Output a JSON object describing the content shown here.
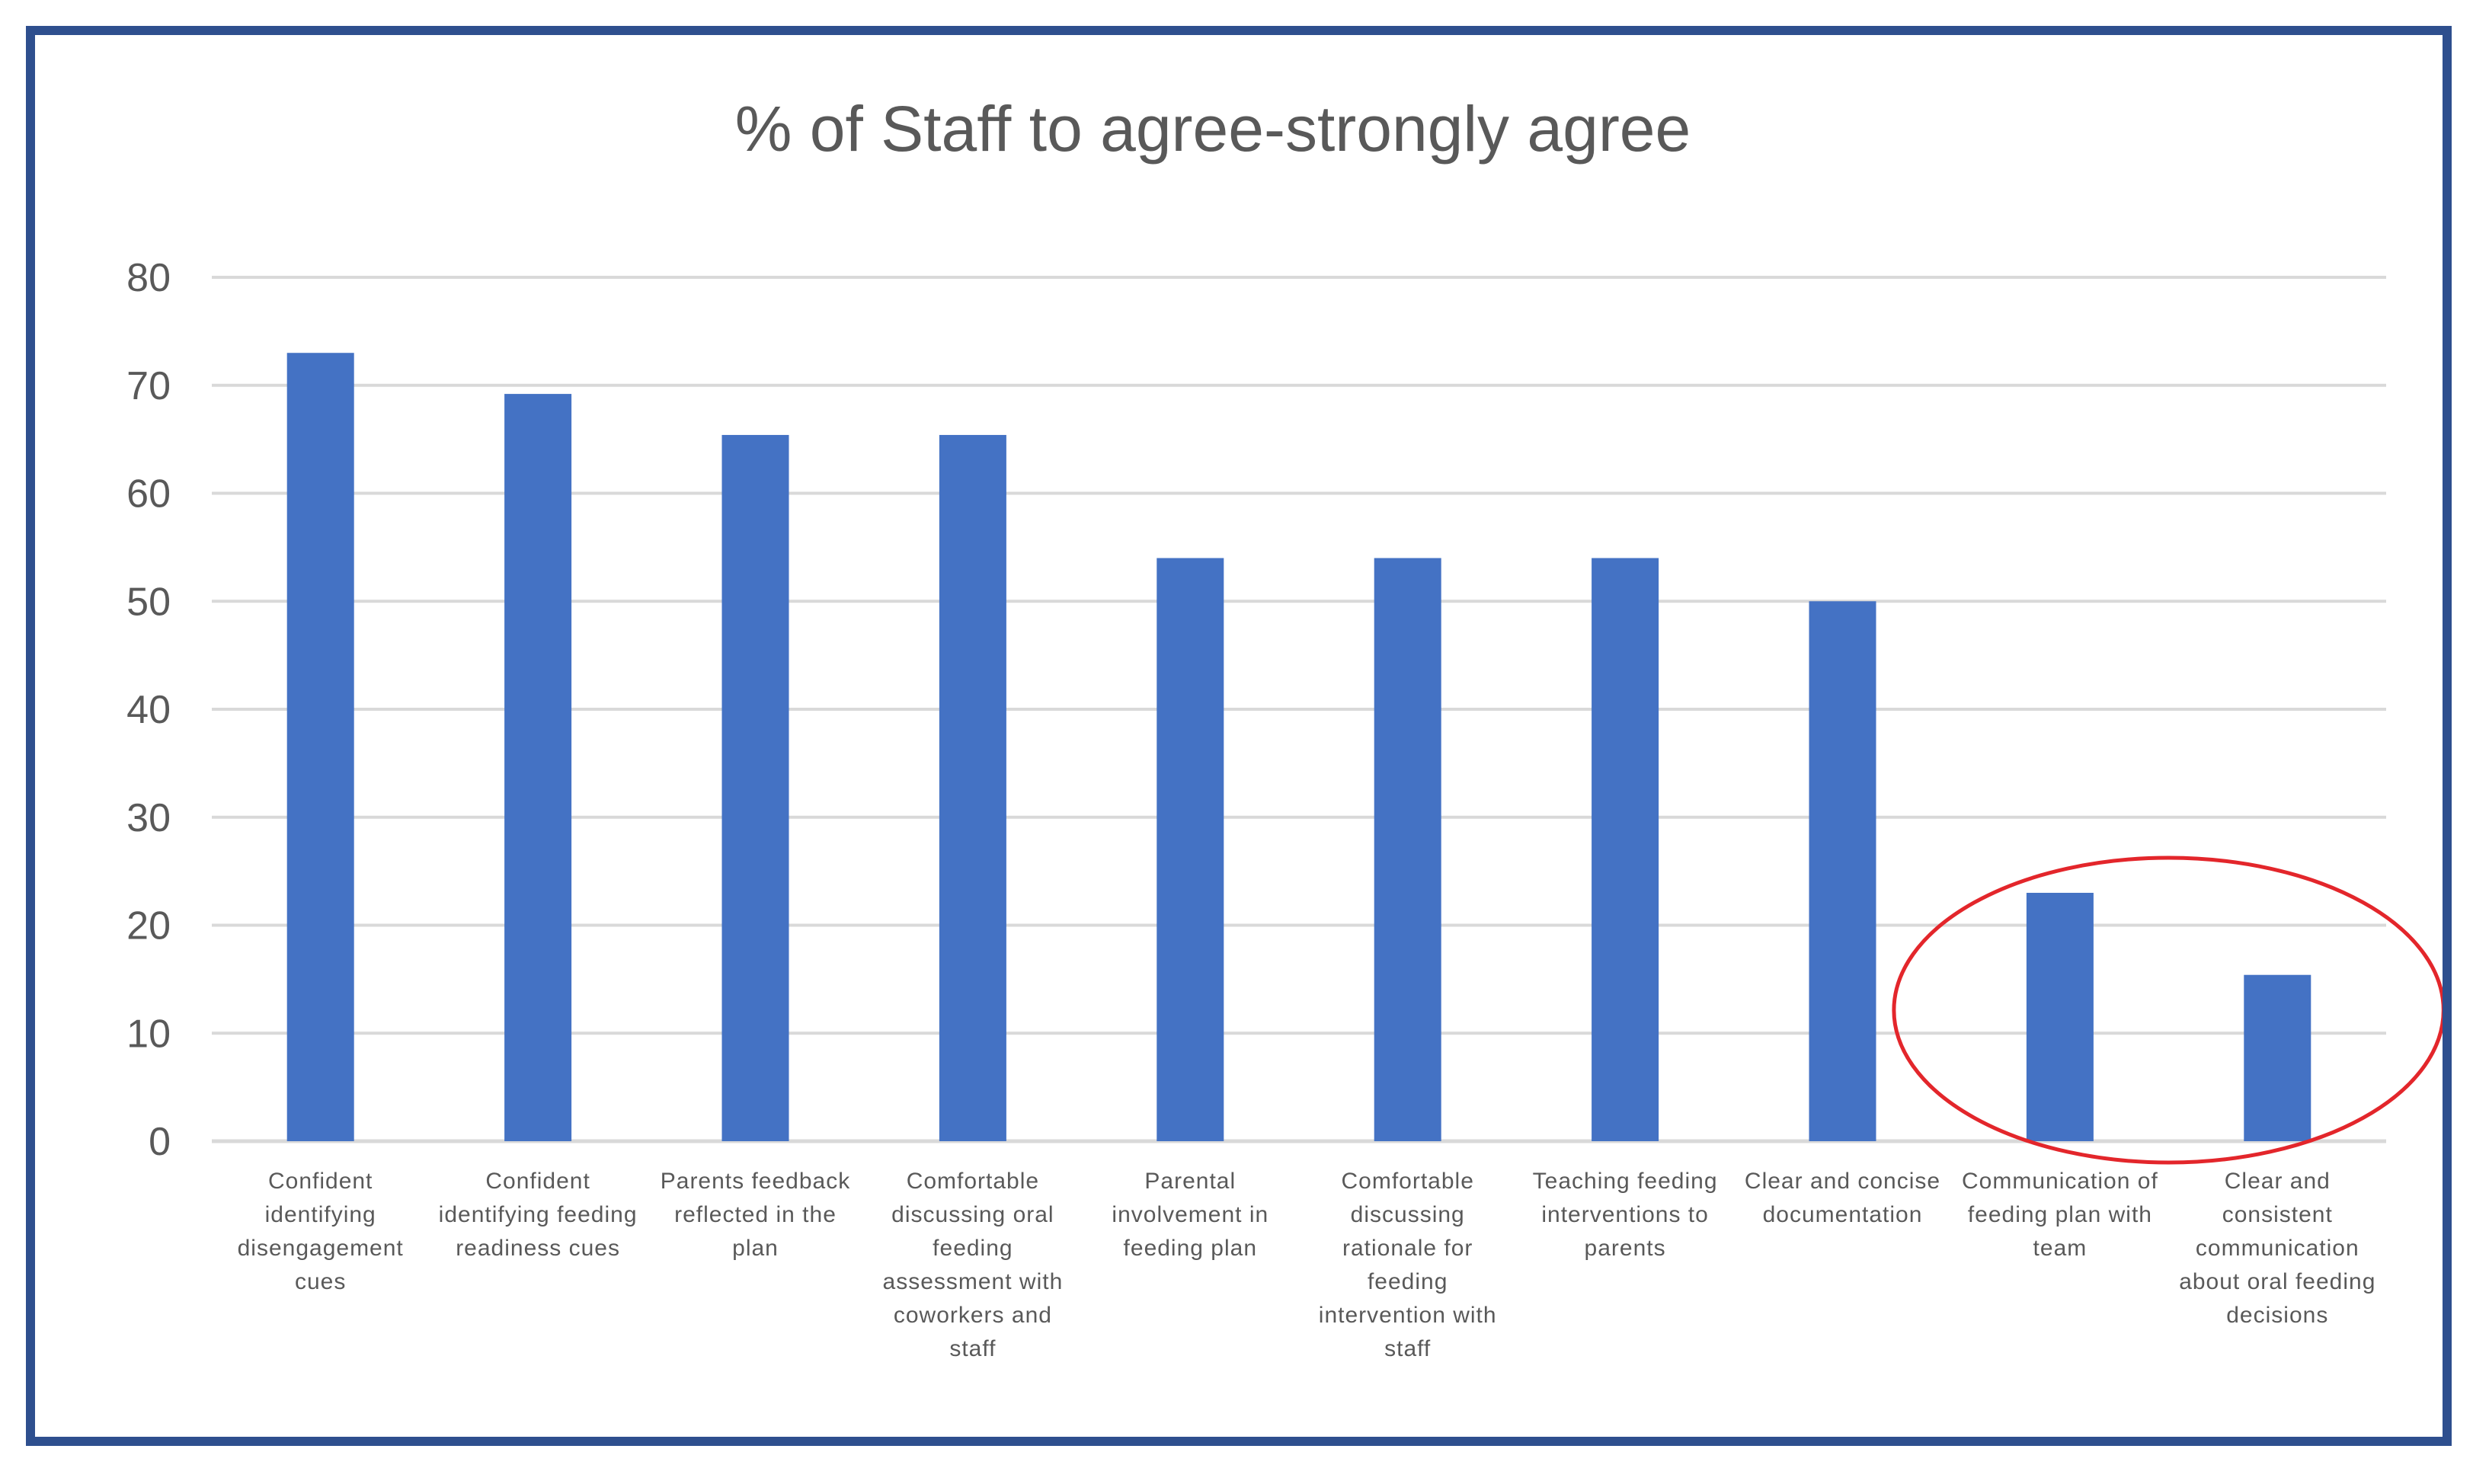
{
  "chart_data": {
    "type": "bar",
    "title": "% of Staff to agree-strongly agree",
    "xlabel": "",
    "ylabel": "",
    "ylim": [
      0,
      80
    ],
    "yticks": [
      0,
      10,
      20,
      30,
      40,
      50,
      60,
      70,
      80
    ],
    "grid": true,
    "legend": "none",
    "bar_color": "#4472c4",
    "highlight_color": "#e3262b",
    "highlighted_categories": [
      8,
      9
    ],
    "categories": [
      "Confident identifying disengagement cues",
      "Confident identifying feeding readiness cues",
      "Parents feedback reflected in the plan",
      "Comfortable discussing oral feeding assessment with coworkers and staff",
      "Parental involvement in feeding plan",
      "Comfortable discussing rationale for feeding intervention with staff",
      "Teaching feeding interventions to parents",
      "Clear and concise documentation",
      "Communication of feeding plan with team",
      "Clear and consistent communication about oral feeding decisions"
    ],
    "category_lines": [
      [
        "Confident",
        "identifying",
        "disengagement",
        "cues"
      ],
      [
        "Confident",
        "identifying feeding",
        "readiness cues"
      ],
      [
        "Parents feedback",
        "reflected in the",
        "plan"
      ],
      [
        "Comfortable",
        "discussing oral",
        "feeding",
        "assessment with",
        "coworkers and",
        "staff"
      ],
      [
        "Parental",
        "involvement in",
        "feeding plan"
      ],
      [
        "Comfortable",
        "discussing",
        "rationale for",
        "feeding",
        "intervention with",
        "staff"
      ],
      [
        "Teaching feeding",
        "interventions to",
        "parents"
      ],
      [
        "Clear and concise",
        "documentation"
      ],
      [
        "Communication of",
        "feeding plan with",
        "team"
      ],
      [
        "Clear and",
        "consistent",
        "communication",
        "about oral feeding",
        "decisions"
      ]
    ],
    "values": [
      73,
      69.2,
      65.4,
      65.4,
      54,
      54,
      54,
      50,
      23,
      15.4
    ]
  }
}
